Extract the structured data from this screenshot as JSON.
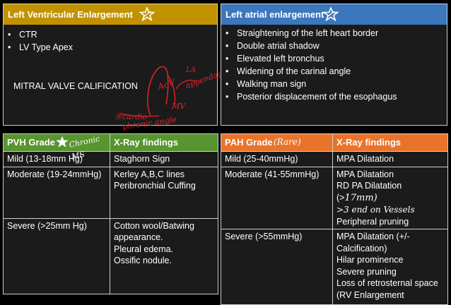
{
  "lve": {
    "title": "Left Ventricular Enlargement",
    "bullets": [
      "CTR",
      "LV Type Apex"
    ],
    "note": "MITRAL VALVE CALIFICATION",
    "annotations": {
      "aov": "AoV",
      "la": "LA",
      "appendage": "appendage",
      "mv": "MV",
      "cardio": "Ⓡcardio",
      "phrenic": "phrenic angle"
    }
  },
  "lae": {
    "title": "Left atrial enlargement",
    "bullets": [
      "Straightening of the left heart border",
      "Double atrial shadow",
      "Elevated left bronchus",
      "Widening of the carinal angle",
      "Walking man sign",
      "Posterior displacement of the  esophagus"
    ]
  },
  "pvh": {
    "header": [
      "PVH Grade",
      "X-Ray findings"
    ],
    "chronic_note": "Chronic MS",
    "rows": [
      {
        "grade": "Mild (13-18mm Hg)",
        "findings": [
          "Staghorn Sign"
        ]
      },
      {
        "grade": "Moderate (19-24mmHg)",
        "findings": [
          "Kerley A,B,C lines",
          "Peribronchial Cuffing"
        ]
      },
      {
        "grade": "Severe (>25mm Hg)",
        "findings": [
          "Cotton wool/Batwing",
          "appearance.",
          "Pleural edema.",
          "Ossific nodule."
        ]
      }
    ]
  },
  "pah": {
    "header": [
      "PAH Grade",
      "X-Ray findings"
    ],
    "rare_note": "(Rare)",
    "rows": [
      {
        "grade": "Mild (25-40mmHg)",
        "findings": [
          "MPA Dilatation"
        ]
      },
      {
        "grade": "Moderate (41-55mmHg)",
        "findings": [
          "MPA Dilatation",
          "RD PA Dilatation (>",
          "Peripheral pruning"
        ],
        "hand1": "17mm)",
        "hand2": ">3 end on Vessels"
      },
      {
        "grade": "Severe (>55mmHg)",
        "findings": [
          "MPA Dilatation (+/-",
          "Calcification)",
          "Hilar prominence",
          "Severe pruning",
          "Loss of retrosternal space",
          "(RV Enlargement"
        ]
      }
    ]
  },
  "colors": {
    "gold": "#c09200",
    "blue": "#3a77bd",
    "green": "#58942f",
    "orange": "#e8742c",
    "ink": "#e0232b"
  },
  "icons": [
    "star-icon"
  ]
}
